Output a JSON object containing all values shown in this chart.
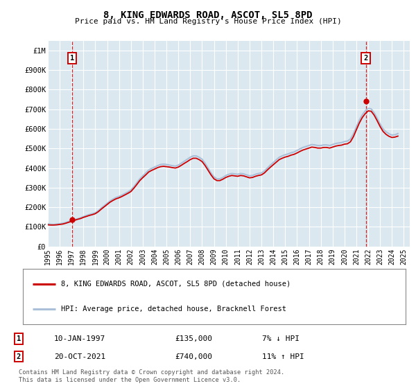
{
  "title": "8, KING EDWARDS ROAD, ASCOT, SL5 8PD",
  "subtitle": "Price paid vs. HM Land Registry's House Price Index (HPI)",
  "ylim": [
    0,
    1050000
  ],
  "xlim_start": 1995.0,
  "xlim_end": 2025.5,
  "yticks": [
    0,
    100000,
    200000,
    300000,
    400000,
    500000,
    600000,
    700000,
    800000,
    900000,
    1000000
  ],
  "ytick_labels": [
    "£0",
    "£100K",
    "£200K",
    "£300K",
    "£400K",
    "£500K",
    "£600K",
    "£700K",
    "£800K",
    "£900K",
    "£1M"
  ],
  "xticks": [
    1995,
    1996,
    1997,
    1998,
    1999,
    2000,
    2001,
    2002,
    2003,
    2004,
    2005,
    2006,
    2007,
    2008,
    2009,
    2010,
    2011,
    2012,
    2013,
    2014,
    2015,
    2016,
    2017,
    2018,
    2019,
    2020,
    2021,
    2022,
    2023,
    2024,
    2025
  ],
  "bg_color": "#dce8f0",
  "grid_color": "#ffffff",
  "red_line_color": "#cc0000",
  "blue_line_color": "#aac0d8",
  "sale1_x": 1997.04,
  "sale1_y": 135000,
  "sale1_label": "1",
  "sale1_date": "10-JAN-1997",
  "sale1_price": "£135,000",
  "sale1_hpi": "7% ↓ HPI",
  "sale2_x": 2021.79,
  "sale2_y": 740000,
  "sale2_label": "2",
  "sale2_date": "20-OCT-2021",
  "sale2_price": "£740,000",
  "sale2_hpi": "11% ↑ HPI",
  "legend_line1": "8, KING EDWARDS ROAD, ASCOT, SL5 8PD (detached house)",
  "legend_line2": "HPI: Average price, detached house, Bracknell Forest",
  "footer": "Contains HM Land Registry data © Crown copyright and database right 2024.\nThis data is licensed under the Open Government Licence v3.0.",
  "hpi_data_x": [
    1995.0,
    1995.25,
    1995.5,
    1995.75,
    1996.0,
    1996.25,
    1996.5,
    1996.75,
    1997.0,
    1997.25,
    1997.5,
    1997.75,
    1998.0,
    1998.25,
    1998.5,
    1998.75,
    1999.0,
    1999.25,
    1999.5,
    1999.75,
    2000.0,
    2000.25,
    2000.5,
    2000.75,
    2001.0,
    2001.25,
    2001.5,
    2001.75,
    2002.0,
    2002.25,
    2002.5,
    2002.75,
    2003.0,
    2003.25,
    2003.5,
    2003.75,
    2004.0,
    2004.25,
    2004.5,
    2004.75,
    2005.0,
    2005.25,
    2005.5,
    2005.75,
    2006.0,
    2006.25,
    2006.5,
    2006.75,
    2007.0,
    2007.25,
    2007.5,
    2007.75,
    2008.0,
    2008.25,
    2008.5,
    2008.75,
    2009.0,
    2009.25,
    2009.5,
    2009.75,
    2010.0,
    2010.25,
    2010.5,
    2010.75,
    2011.0,
    2011.25,
    2011.5,
    2011.75,
    2012.0,
    2012.25,
    2012.5,
    2012.75,
    2013.0,
    2013.25,
    2013.5,
    2013.75,
    2014.0,
    2014.25,
    2014.5,
    2014.75,
    2015.0,
    2015.25,
    2015.5,
    2015.75,
    2016.0,
    2016.25,
    2016.5,
    2016.75,
    2017.0,
    2017.25,
    2017.5,
    2017.75,
    2018.0,
    2018.25,
    2018.5,
    2018.75,
    2019.0,
    2019.25,
    2019.5,
    2019.75,
    2020.0,
    2020.25,
    2020.5,
    2020.75,
    2021.0,
    2021.25,
    2021.5,
    2021.75,
    2022.0,
    2022.25,
    2022.5,
    2022.75,
    2023.0,
    2023.25,
    2023.5,
    2023.75,
    2024.0,
    2024.25,
    2024.5
  ],
  "hpi_data_y": [
    115000,
    113000,
    112000,
    114000,
    116000,
    118000,
    122000,
    127000,
    132000,
    137000,
    141000,
    146000,
    152000,
    158000,
    163000,
    167000,
    172000,
    182000,
    196000,
    208000,
    220000,
    232000,
    242000,
    250000,
    255000,
    262000,
    270000,
    278000,
    288000,
    305000,
    325000,
    345000,
    360000,
    375000,
    390000,
    398000,
    405000,
    412000,
    418000,
    420000,
    418000,
    415000,
    412000,
    410000,
    415000,
    425000,
    435000,
    445000,
    455000,
    462000,
    462000,
    455000,
    445000,
    425000,
    400000,
    375000,
    355000,
    345000,
    345000,
    352000,
    362000,
    368000,
    372000,
    370000,
    368000,
    372000,
    370000,
    365000,
    360000,
    362000,
    368000,
    372000,
    375000,
    385000,
    400000,
    415000,
    428000,
    442000,
    455000,
    462000,
    468000,
    472000,
    478000,
    482000,
    490000,
    498000,
    505000,
    510000,
    515000,
    520000,
    518000,
    515000,
    515000,
    518000,
    518000,
    515000,
    520000,
    525000,
    528000,
    530000,
    535000,
    538000,
    548000,
    575000,
    610000,
    645000,
    672000,
    692000,
    705000,
    702000,
    682000,
    655000,
    625000,
    600000,
    585000,
    575000,
    568000,
    570000,
    576000
  ],
  "property_data_x": [
    1995.0,
    1995.25,
    1995.5,
    1995.75,
    1996.0,
    1996.25,
    1996.5,
    1996.75,
    1997.0,
    1997.25,
    1997.5,
    1997.75,
    1998.0,
    1998.25,
    1998.5,
    1998.75,
    1999.0,
    1999.25,
    1999.5,
    1999.75,
    2000.0,
    2000.25,
    2000.5,
    2000.75,
    2001.0,
    2001.25,
    2001.5,
    2001.75,
    2002.0,
    2002.25,
    2002.5,
    2002.75,
    2003.0,
    2003.25,
    2003.5,
    2003.75,
    2004.0,
    2004.25,
    2004.5,
    2004.75,
    2005.0,
    2005.25,
    2005.5,
    2005.75,
    2006.0,
    2006.25,
    2006.5,
    2006.75,
    2007.0,
    2007.25,
    2007.5,
    2007.75,
    2008.0,
    2008.25,
    2008.5,
    2008.75,
    2009.0,
    2009.25,
    2009.5,
    2009.75,
    2010.0,
    2010.25,
    2010.5,
    2010.75,
    2011.0,
    2011.25,
    2011.5,
    2011.75,
    2012.0,
    2012.25,
    2012.5,
    2012.75,
    2013.0,
    2013.25,
    2013.5,
    2013.75,
    2014.0,
    2014.25,
    2014.5,
    2014.75,
    2015.0,
    2015.25,
    2015.5,
    2015.75,
    2016.0,
    2016.25,
    2016.5,
    2016.75,
    2017.0,
    2017.25,
    2017.5,
    2017.75,
    2018.0,
    2018.25,
    2018.5,
    2018.75,
    2019.0,
    2019.25,
    2019.5,
    2019.75,
    2020.0,
    2020.25,
    2020.5,
    2020.75,
    2021.0,
    2021.25,
    2021.5,
    2021.75,
    2022.0,
    2022.25,
    2022.5,
    2022.75,
    2023.0,
    2023.25,
    2023.5,
    2023.75,
    2024.0,
    2024.25,
    2024.5
  ],
  "property_data_y": [
    110000,
    109000,
    109000,
    110000,
    112000,
    114000,
    118000,
    123000,
    128000,
    133000,
    138000,
    142000,
    148000,
    153000,
    158000,
    162000,
    167000,
    177000,
    190000,
    202000,
    214000,
    226000,
    235000,
    243000,
    248000,
    255000,
    263000,
    271000,
    280000,
    297000,
    316000,
    336000,
    351000,
    365000,
    380000,
    388000,
    395000,
    402000,
    407000,
    409000,
    407000,
    405000,
    402000,
    400000,
    405000,
    414000,
    424000,
    433000,
    443000,
    450000,
    450000,
    443000,
    433000,
    413000,
    389000,
    365000,
    345000,
    336000,
    336000,
    343000,
    352000,
    358000,
    362000,
    360000,
    358000,
    362000,
    360000,
    355000,
    350000,
    352000,
    358000,
    362000,
    365000,
    375000,
    390000,
    404000,
    417000,
    430000,
    443000,
    450000,
    456000,
    460000,
    466000,
    470000,
    477000,
    485000,
    492000,
    497000,
    502000,
    507000,
    505000,
    502000,
    502000,
    505000,
    505000,
    502000,
    507000,
    512000,
    515000,
    517000,
    522000,
    524000,
    534000,
    560000,
    595000,
    630000,
    658000,
    678000,
    692000,
    690000,
    670000,
    642000,
    612000,
    587000,
    572000,
    562000,
    556000,
    558000,
    563000
  ]
}
